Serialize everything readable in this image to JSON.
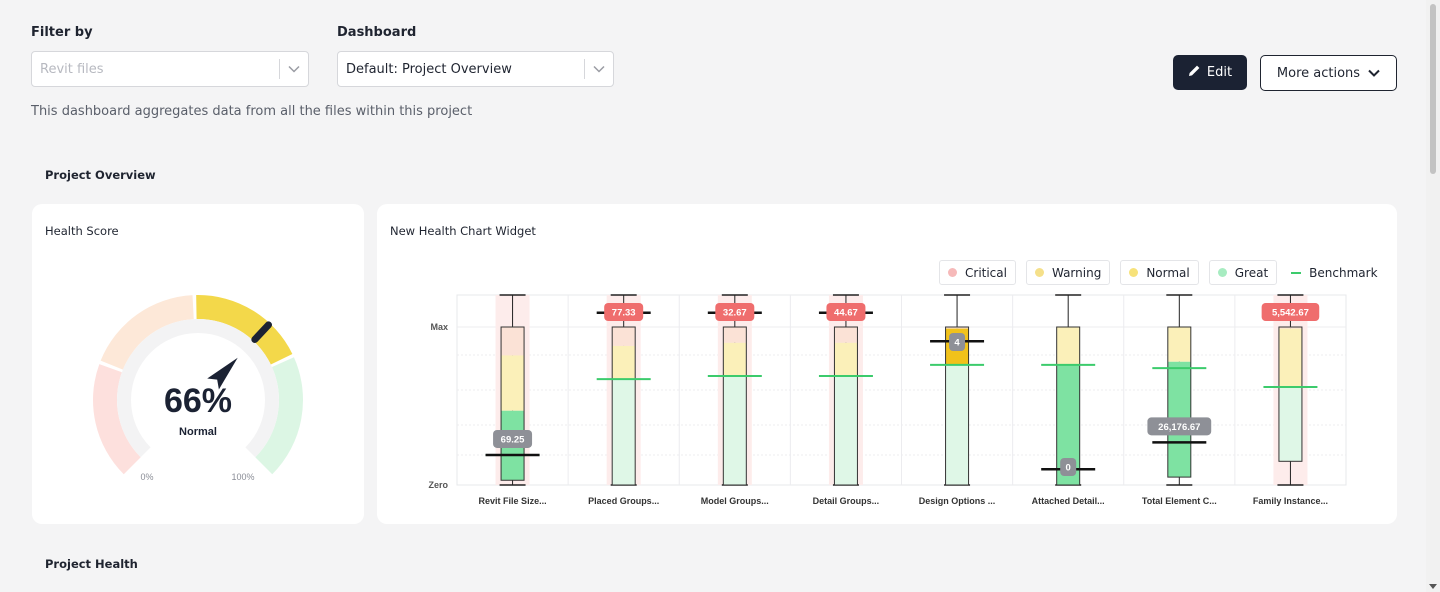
{
  "filter": {
    "label": "Filter by",
    "placeholder": "Revit files"
  },
  "dashboard": {
    "label": "Dashboard",
    "value": "Default: Project Overview"
  },
  "description": "This dashboard aggregates data from all the files within this project",
  "actions": {
    "edit_label": "Edit",
    "more_label": "More actions"
  },
  "sections": {
    "overview": "Project Overview",
    "health": "Project Health"
  },
  "health_score": {
    "title": "Health Score",
    "value": 66,
    "value_text": "66%",
    "status": "Normal",
    "min_label": "0%",
    "max_label": "100%"
  },
  "chart_widget": {
    "title": "New Health Chart Widget",
    "legend": [
      {
        "label": "Critical",
        "color": "#f6b9b9"
      },
      {
        "label": "Warning",
        "color": "#f5e08a"
      },
      {
        "label": "Normal",
        "color": "#f7e27a"
      },
      {
        "label": "Great",
        "color": "#a7ecc1"
      },
      {
        "label": "Benchmark",
        "color": "#3ccb6c"
      }
    ]
  },
  "chart_data": {
    "type": "bar",
    "y_tick_labels": [
      "Max",
      "Zero"
    ],
    "categories": [
      "Revit File Size...",
      "Placed Groups...",
      "Model Groups...",
      "Detail Groups...",
      "Design Options ...",
      "Attached Detail...",
      "Total Element C...",
      "Family Instance..."
    ],
    "value_labels": [
      "69.25",
      "77.33",
      "32.67",
      "44.67",
      "4",
      "0",
      "26,176.67",
      "5,542.67"
    ],
    "value_level": [
      0.19,
      1.09,
      1.09,
      1.09,
      0.91,
      0.1,
      0.27,
      1.09
    ],
    "label_style": [
      "gray",
      "red",
      "red",
      "red",
      "gray",
      "gray",
      "gray",
      "red"
    ],
    "benchmark_level": [
      0.19,
      0.67,
      0.69,
      0.69,
      0.76,
      0.76,
      0.74,
      0.62
    ],
    "great_top": [
      0.47,
      0.67,
      0.69,
      0.69,
      0.76,
      0.76,
      0.78,
      0.62
    ],
    "normal_top": [
      0.82,
      0.88,
      0.9,
      0.9,
      0.99,
      1.0,
      1.0,
      0.99
    ],
    "box_top": [
      1.0,
      1.0,
      1.0,
      1.0,
      1.0,
      1.0,
      1.0,
      1.0
    ],
    "box_bottom": [
      0.03,
      0.0,
      0.0,
      0.0,
      0.0,
      0.0,
      0.05,
      0.15
    ],
    "great_strong": [
      true,
      false,
      false,
      false,
      false,
      true,
      true,
      false
    ],
    "normal_strong": [
      false,
      false,
      false,
      false,
      true,
      false,
      false,
      false
    ],
    "critical_visible": [
      true,
      true,
      true,
      true,
      false,
      false,
      false,
      true
    ]
  }
}
